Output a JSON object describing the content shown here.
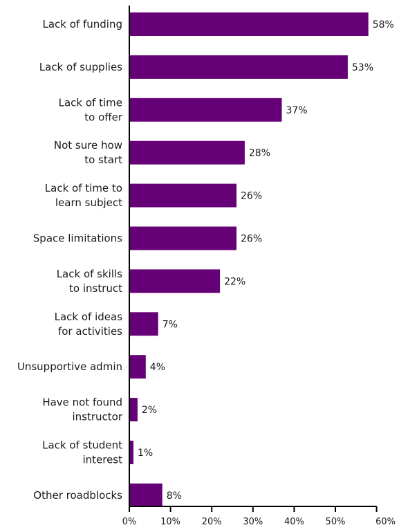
{
  "chart_data": {
    "type": "bar",
    "orientation": "horizontal",
    "categories": [
      "Lack of funding",
      "Lack of supplies",
      "Lack of time\nto offer",
      "Not sure how\nto start",
      "Lack of time to\nlearn subject",
      "Space limitations",
      "Lack of skills\nto instruct",
      "Lack of ideas\nfor activities",
      "Unsupportive admin",
      "Have not found\ninstructor",
      "Lack of student\ninterest",
      "Other roadblocks"
    ],
    "values": [
      58,
      53,
      37,
      28,
      26,
      26,
      22,
      7,
      4,
      2,
      1,
      8
    ],
    "value_labels": [
      "58%",
      "53%",
      "37%",
      "28%",
      "26%",
      "26%",
      "22%",
      "7%",
      "4%",
      "2%",
      "1%",
      "8%"
    ],
    "x_ticks": [
      0,
      10,
      20,
      30,
      40,
      50,
      60
    ],
    "x_tick_labels": [
      "0%",
      "10%",
      "20%",
      "30%",
      "40%",
      "50%",
      "60%"
    ],
    "xlim": [
      0,
      60
    ],
    "title": "",
    "xlabel": "",
    "ylabel": "",
    "grid": false,
    "bar_color": "#660077",
    "axis_color": "#000000"
  }
}
